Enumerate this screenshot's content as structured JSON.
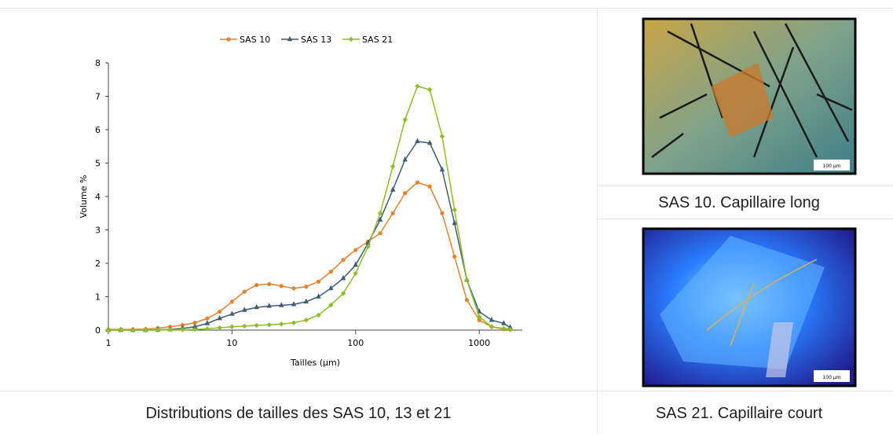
{
  "chart_data": {
    "type": "line",
    "log_x": true,
    "x_label": "Tailles (µm)",
    "y_label": "Volume %",
    "x": [
      1,
      1.26,
      1.58,
      2,
      2.51,
      3.16,
      3.98,
      5.01,
      6.31,
      7.94,
      10,
      12.6,
      15.8,
      20,
      25.1,
      31.6,
      39.8,
      50.1,
      63.1,
      79.4,
      100,
      126,
      158,
      200,
      251,
      316,
      398,
      501,
      631,
      794,
      1000,
      1260,
      1580,
      1780
    ],
    "series": [
      {
        "name": "SAS 10",
        "color": "#e8822a",
        "marker": "circle",
        "values": [
          0.02,
          0.02,
          0.02,
          0.03,
          0.06,
          0.1,
          0.15,
          0.22,
          0.35,
          0.55,
          0.85,
          1.15,
          1.35,
          1.38,
          1.32,
          1.25,
          1.3,
          1.45,
          1.75,
          2.1,
          2.4,
          2.65,
          2.9,
          3.5,
          4.1,
          4.42,
          4.3,
          3.5,
          2.2,
          0.9,
          0.3,
          0.1,
          0.03,
          0.01
        ]
      },
      {
        "name": "SAS 13",
        "color": "#3d5e73",
        "marker": "triangle",
        "values": [
          0,
          0,
          0,
          0,
          0.01,
          0.02,
          0.05,
          0.1,
          0.2,
          0.35,
          0.48,
          0.6,
          0.68,
          0.72,
          0.74,
          0.77,
          0.85,
          1.0,
          1.25,
          1.55,
          1.95,
          2.6,
          3.3,
          4.2,
          5.1,
          5.65,
          5.6,
          4.8,
          3.2,
          1.5,
          0.55,
          0.3,
          0.2,
          0.08
        ]
      },
      {
        "name": "SAS 21",
        "color": "#8cbf26",
        "marker": "diamond",
        "values": [
          0,
          0,
          0,
          0,
          0,
          0.01,
          0.01,
          0.02,
          0.04,
          0.07,
          0.1,
          0.12,
          0.14,
          0.16,
          0.18,
          0.22,
          0.3,
          0.45,
          0.75,
          1.1,
          1.7,
          2.5,
          3.5,
          4.9,
          6.3,
          7.3,
          7.2,
          5.8,
          3.6,
          1.5,
          0.4,
          0.1,
          0.05,
          0.02
        ]
      }
    ],
    "xlim": [
      1,
      2230
    ],
    "xticks": [
      1,
      10,
      100,
      1000
    ],
    "ylim": [
      0,
      8
    ],
    "yticks": [
      0,
      1,
      2,
      3,
      4,
      5,
      6,
      7,
      8
    ],
    "legend": "top"
  },
  "caption": "Distributions de tailles des SAS 10, 13 et 21",
  "images": [
    {
      "caption": "SAS 10. Capillaire long",
      "scale": "100 µm"
    },
    {
      "caption": "SAS 21. Capillaire court",
      "scale": "100 µm"
    }
  ]
}
